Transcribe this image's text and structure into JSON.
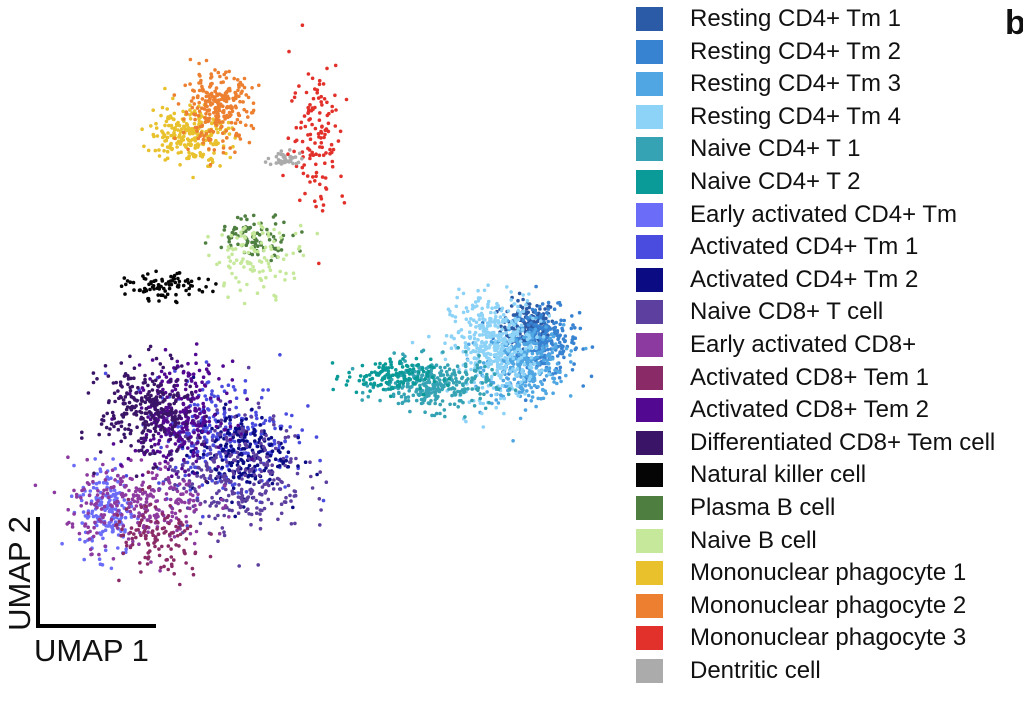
{
  "chart_data": {
    "type": "scatter",
    "panel_letter": "b",
    "xlabel": "UMAP 1",
    "ylabel": "UMAP 2",
    "axis_ticks": "none",
    "legend_position": "right",
    "legend": [
      {
        "name": "Resting CD4+ Tm 1",
        "color": "#2b5aa6"
      },
      {
        "name": "Resting CD4+ Tm 2",
        "color": "#3782d1"
      },
      {
        "name": "Resting CD4+ Tm 3",
        "color": "#4fa6e2"
      },
      {
        "name": "Resting CD4+ Tm 4",
        "color": "#8dd2f7"
      },
      {
        "name": "Naive CD4+ T 1",
        "color": "#35a3b3"
      },
      {
        "name": "Naive CD4+ T 2",
        "color": "#0a9a98"
      },
      {
        "name": "Early activated CD4+ Tm",
        "color": "#6b6cf7"
      },
      {
        "name": "Activated CD4+ Tm 1",
        "color": "#4a4cdf"
      },
      {
        "name": "Activated CD4+ Tm 2",
        "color": "#0b0b84"
      },
      {
        "name": "Naive CD8+ T cell",
        "color": "#5c3f9e"
      },
      {
        "name": "Early activated CD8+",
        "color": "#8d3aa0"
      },
      {
        "name": "Activated CD8+ Tem 1",
        "color": "#8a2a66"
      },
      {
        "name": "Activated CD8+ Tem  2",
        "color": "#520890"
      },
      {
        "name": "Differentiated CD8+ Tem cell",
        "color": "#3a1466"
      },
      {
        "name": "Natural killer cell",
        "color": "#050505"
      },
      {
        "name": "Plasma B cell",
        "color": "#4f7f40"
      },
      {
        "name": "Naive B cell",
        "color": "#c6e89a"
      },
      {
        "name": "Mononuclear phagocyte 1",
        "color": "#e8c12c"
      },
      {
        "name": "Mononuclear phagocyte 2",
        "color": "#ec8030"
      },
      {
        "name": "Mononuclear phagocyte 3",
        "color": "#e2302a"
      },
      {
        "name": "Dentritic cell",
        "color": "#ababab"
      }
    ],
    "clusters": [
      {
        "name": "Resting CD4+ Tm 1",
        "center": [
          8.4,
          6.3
        ],
        "spread": [
          0.35,
          0.3
        ],
        "n": 170
      },
      {
        "name": "Resting CD4+ Tm 2",
        "center": [
          8.8,
          5.9
        ],
        "spread": [
          0.45,
          0.4
        ],
        "n": 240
      },
      {
        "name": "Resting CD4+ Tm 3",
        "center": [
          8.3,
          5.4
        ],
        "spread": [
          0.5,
          0.45
        ],
        "n": 320
      },
      {
        "name": "Resting CD4+ Tm 4",
        "center": [
          7.5,
          5.8
        ],
        "spread": [
          0.55,
          0.6
        ],
        "n": 420
      },
      {
        "name": "Naive CD4+ T 1",
        "center": [
          6.0,
          4.9
        ],
        "spread": [
          0.7,
          0.3
        ],
        "n": 300
      },
      {
        "name": "Naive CD4+ T 2",
        "center": [
          4.8,
          5.1
        ],
        "spread": [
          0.55,
          0.2
        ],
        "n": 140
      },
      {
        "name": "Early activated CD4+ Tm",
        "center": [
          -2.4,
          2.0
        ],
        "spread": [
          0.35,
          0.55
        ],
        "n": 170
      },
      {
        "name": "Activated CD4+ Tm 1",
        "center": [
          0.6,
          3.7
        ],
        "spread": [
          0.9,
          0.7
        ],
        "n": 280
      },
      {
        "name": "Activated CD4+ Tm 2",
        "center": [
          1.0,
          3.3
        ],
        "spread": [
          0.6,
          0.5
        ],
        "n": 220
      },
      {
        "name": "Naive CD8+ T cell",
        "center": [
          0.9,
          2.8
        ],
        "spread": [
          0.9,
          0.7
        ],
        "n": 300
      },
      {
        "name": "Early activated CD8+",
        "center": [
          -1.6,
          2.1
        ],
        "spread": [
          0.9,
          0.5
        ],
        "n": 260
      },
      {
        "name": "Activated CD8+ Tem 1",
        "center": [
          -1.1,
          1.2
        ],
        "spread": [
          0.6,
          0.5
        ],
        "n": 120
      },
      {
        "name": "Activated CD8+ Tem  2",
        "center": [
          -0.6,
          4.2
        ],
        "spread": [
          0.6,
          0.6
        ],
        "n": 300
      },
      {
        "name": "Differentiated CD8+ Tem cell",
        "center": [
          -1.4,
          4.3
        ],
        "spread": [
          0.6,
          0.55
        ],
        "n": 280
      },
      {
        "name": "Natural killer cell",
        "center": [
          -0.9,
          7.2
        ],
        "spread": [
          0.5,
          0.15
        ],
        "n": 90
      },
      {
        "name": "Plasma B cell",
        "center": [
          1.4,
          8.4
        ],
        "spread": [
          0.5,
          0.25
        ],
        "n": 90
      },
      {
        "name": "Naive B cell",
        "center": [
          1.5,
          7.9
        ],
        "spread": [
          0.6,
          0.4
        ],
        "n": 110
      },
      {
        "name": "Mononuclear phagocyte 1",
        "center": [
          -0.3,
          10.8
        ],
        "spread": [
          0.5,
          0.35
        ],
        "n": 240
      },
      {
        "name": "Mononuclear phagocyte 2",
        "center": [
          0.4,
          11.4
        ],
        "spread": [
          0.45,
          0.4
        ],
        "n": 260
      },
      {
        "name": "Mononuclear phagocyte 3",
        "center": [
          3.0,
          10.8
        ],
        "spread": [
          0.35,
          0.9
        ],
        "n": 130
      },
      {
        "name": "Dentritic cell",
        "center": [
          2.2,
          10.2
        ],
        "spread": [
          0.25,
          0.08
        ],
        "n": 40
      }
    ],
    "xlim": [
      -4,
      10.5
    ],
    "ylim": [
      -0.5,
      13
    ]
  }
}
